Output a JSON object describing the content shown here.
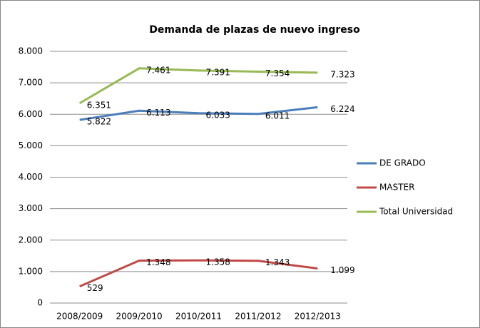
{
  "chart_data": {
    "type": "line",
    "title": "Demanda de plazas de nuevo ingreso",
    "categories": [
      "2008/2009",
      "2009/2010",
      "2010/2011",
      "2011/2012",
      "2012/2013"
    ],
    "series": [
      {
        "name": "DE GRADO",
        "color": "#4a7ebb",
        "values": [
          5822,
          6113,
          6033,
          6011,
          6224
        ],
        "value_labels": [
          "5.822",
          "6.113",
          "6.033",
          "6.011",
          "6.224"
        ]
      },
      {
        "name": "MASTER",
        "color": "#be4b48",
        "values": [
          529,
          1348,
          1358,
          1343,
          1099
        ],
        "value_labels": [
          "529",
          "1.348",
          "1.358",
          "1.343",
          "1.099"
        ]
      },
      {
        "name": "Total Universidad",
        "color": "#98b954",
        "values": [
          6351,
          7461,
          7391,
          7354,
          7323
        ],
        "value_labels": [
          "6.351",
          "7.461",
          "7.391",
          "7.354",
          "7.323"
        ]
      }
    ],
    "ylim": [
      0,
      8000
    ],
    "yticks": [
      0,
      {
        "value": 1000,
        "label": "1.000"
      },
      {
        "value": 2000,
        "label": "2.000"
      },
      {
        "value": 3000,
        "label": "3.000"
      },
      {
        "value": 4000,
        "label": "4.000"
      },
      {
        "value": 5000,
        "label": "5.000"
      },
      {
        "value": 6000,
        "label": "6.000"
      },
      {
        "value": 7000,
        "label": "7.000"
      },
      {
        "value": 8000,
        "label": "8.000"
      }
    ],
    "grid": true,
    "legend": "right"
  }
}
